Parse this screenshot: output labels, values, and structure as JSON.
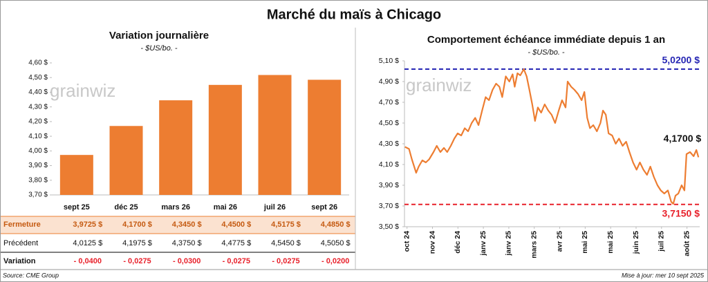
{
  "title": "Marché du maïs à Chicago",
  "watermark": "grainwiz",
  "source": "Source: CME Group",
  "updated": "Mise à jour: mer 10 sept 2025",
  "chart_data": [
    {
      "type": "bar",
      "title": "Variation journalière",
      "subtitle": "- $US/bo. -",
      "categories": [
        "sept 25",
        "déc 25",
        "mars 26",
        "mai 26",
        "juil 26",
        "sept 26"
      ],
      "values": [
        3.9725,
        4.17,
        4.345,
        4.45,
        4.5175,
        4.485
      ],
      "value_labels": [
        "3,9725 $",
        "4,1700 $",
        "4,3450 $",
        "4,4500 $",
        "4,5175 $",
        "4,4850 $"
      ],
      "color": "#ed7d31",
      "ylim": [
        3.7,
        4.6
      ],
      "yticks": [
        {
          "value": 3.7,
          "label": "3,70 $"
        },
        {
          "value": 3.8,
          "label": "3,80 $"
        },
        {
          "value": 3.9,
          "label": "3,90 $"
        },
        {
          "value": 4.0,
          "label": "4,00 $"
        },
        {
          "value": 4.1,
          "label": "4,10 $"
        },
        {
          "value": 4.2,
          "label": "4,20 $"
        },
        {
          "value": 4.3,
          "label": "4,30 $"
        },
        {
          "value": 4.4,
          "label": "4,40 $"
        },
        {
          "value": 4.5,
          "label": "4,50 $"
        },
        {
          "value": 4.6,
          "label": "4,60 $"
        }
      ]
    },
    {
      "type": "line",
      "title": "Comportement échéance immédiate depuis 1 an",
      "subtitle": "- $US/bo. -",
      "x": [
        -0.08,
        0.08,
        0.19,
        0.36,
        0.46,
        0.6,
        0.74,
        0.87,
        1.04,
        1.17,
        1.31,
        1.45,
        1.58,
        1.72,
        1.86,
        1.99,
        2.13,
        2.27,
        2.4,
        2.54,
        2.68,
        2.81,
        2.95,
        3.09,
        3.22,
        3.36,
        3.5,
        3.63,
        3.74,
        3.88,
        4.02,
        4.15,
        4.23,
        4.34,
        4.45,
        4.59,
        4.7,
        4.81,
        4.92,
        5.03,
        5.14,
        5.27,
        5.41,
        5.55,
        5.68,
        5.82,
        5.96,
        6.09,
        6.23,
        6.31,
        6.45,
        6.58,
        6.72,
        6.86,
        6.97,
        7.08,
        7.19,
        7.32,
        7.46,
        7.6,
        7.7,
        7.81,
        7.92,
        8.06,
        8.2,
        8.33,
        8.47,
        8.61,
        8.74,
        8.88,
        9.02,
        9.15,
        9.29,
        9.43,
        9.56,
        9.7,
        9.84,
        9.97,
        10.11,
        10.25,
        10.38,
        10.46,
        10.55,
        10.66,
        10.79,
        10.9,
        10.98,
        11.12,
        11.26,
        11.37,
        11.45
      ],
      "series": [
        {
          "name": "Maïs",
          "color": "#ed7d31",
          "values": [
            4.27,
            4.25,
            4.15,
            4.02,
            4.08,
            4.14,
            4.12,
            4.15,
            4.22,
            4.28,
            4.22,
            4.26,
            4.22,
            4.28,
            4.35,
            4.4,
            4.38,
            4.45,
            4.42,
            4.5,
            4.55,
            4.48,
            4.62,
            4.75,
            4.72,
            4.82,
            4.88,
            4.85,
            4.75,
            4.95,
            4.9,
            4.97,
            4.85,
            4.98,
            4.96,
            5.02,
            4.95,
            4.82,
            4.68,
            4.52,
            4.65,
            4.6,
            4.68,
            4.62,
            4.58,
            4.5,
            4.62,
            4.72,
            4.65,
            4.9,
            4.85,
            4.82,
            4.78,
            4.72,
            4.8,
            4.55,
            4.45,
            4.48,
            4.42,
            4.5,
            4.62,
            4.58,
            4.4,
            4.38,
            4.3,
            4.35,
            4.28,
            4.32,
            4.22,
            4.12,
            4.05,
            4.12,
            4.05,
            4.0,
            4.08,
            3.98,
            3.9,
            3.85,
            3.82,
            3.85,
            3.74,
            3.72,
            3.8,
            3.82,
            3.9,
            3.85,
            4.2,
            4.22,
            4.18,
            4.24,
            4.17
          ],
          "last_label": "4,1700 $"
        }
      ],
      "hlines": [
        {
          "value": 5.02,
          "label": "5,0200 $",
          "color": "#2626b4"
        },
        {
          "value": 3.715,
          "label": "3,7150 $",
          "color": "#e8202a"
        }
      ],
      "xlim": [
        -0.1,
        11.5
      ],
      "xticks": [
        {
          "value": 0,
          "label": "oct 24"
        },
        {
          "value": 1,
          "label": "nov 24"
        },
        {
          "value": 2,
          "label": "déc 24"
        },
        {
          "value": 3,
          "label": "janv 25"
        },
        {
          "value": 4,
          "label": "janv 25"
        },
        {
          "value": 5,
          "label": "mars 25"
        },
        {
          "value": 6,
          "label": "avr 25"
        },
        {
          "value": 7,
          "label": "mai 25"
        },
        {
          "value": 8,
          "label": "mai 25"
        },
        {
          "value": 9,
          "label": "juin 25"
        },
        {
          "value": 10,
          "label": "juil 25"
        },
        {
          "value": 11,
          "label": "août 25"
        }
      ],
      "ylim": [
        3.5,
        5.1
      ],
      "yticks": [
        {
          "value": 3.5,
          "label": "3,50 $"
        },
        {
          "value": 3.7,
          "label": "3,70 $"
        },
        {
          "value": 3.9,
          "label": "3,90 $"
        },
        {
          "value": 4.1,
          "label": "4,10 $"
        },
        {
          "value": 4.3,
          "label": "4,30 $"
        },
        {
          "value": 4.5,
          "label": "4,50 $"
        },
        {
          "value": 4.7,
          "label": "4,70 $"
        },
        {
          "value": 4.9,
          "label": "4,90 $"
        },
        {
          "value": 5.1,
          "label": "5,10 $"
        }
      ]
    }
  ],
  "table": {
    "rows": [
      {
        "label": "Fermeture"
      },
      {
        "label": "Précédent",
        "cells": [
          "4,0125 $",
          "4,1975 $",
          "4,3750 $",
          "4,4775 $",
          "4,5450 $",
          "4,5050 $"
        ]
      },
      {
        "label": "Variation",
        "cells": [
          "- 0,0400",
          "- 0,0275",
          "- 0,0300",
          "- 0,0275",
          "- 0,0275",
          "- 0,0200"
        ]
      }
    ]
  }
}
